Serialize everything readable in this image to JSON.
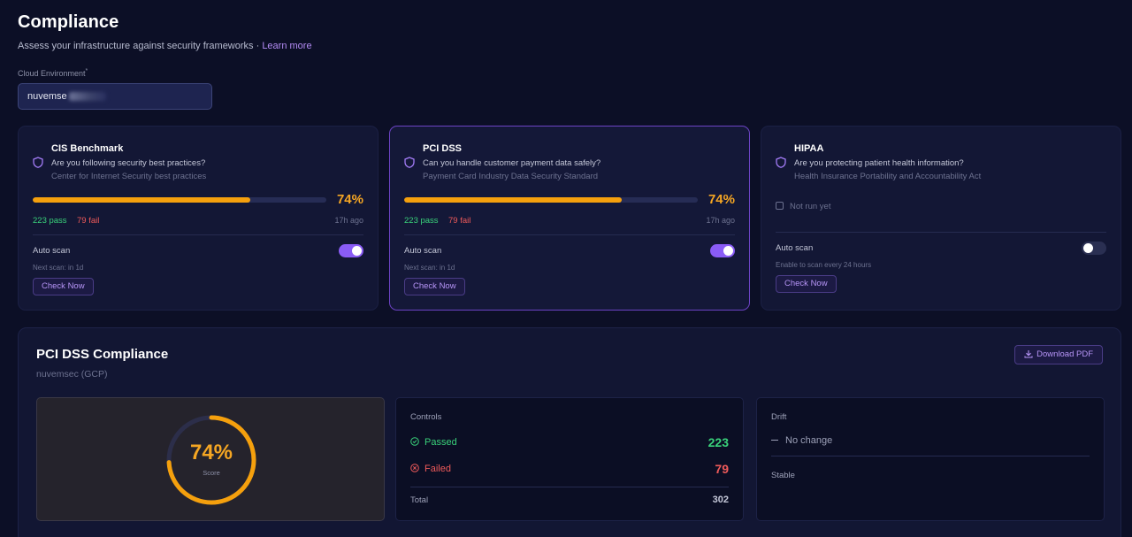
{
  "header": {
    "title": "Compliance",
    "subtitle": "Assess your infrastructure against security frameworks · ",
    "learn_more": "Learn more"
  },
  "environment": {
    "label": "Cloud Environment",
    "required_mark": "*",
    "value": "nuvemse"
  },
  "frameworks": [
    {
      "title": "CIS Benchmark",
      "question": "Are you following security best practices?",
      "description": "Center for Internet Security best practices",
      "percent": 74,
      "percent_label": "74%",
      "pass": "223 pass",
      "fail": "79 fail",
      "ago": "17h ago",
      "auto_scan_label": "Auto scan",
      "auto_scan_on": true,
      "next_scan": "Next scan: in 1d",
      "check_now": "Check Now"
    },
    {
      "title": "PCI DSS",
      "question": "Can you handle customer payment data safely?",
      "description": "Payment Card Industry Data Security Standard",
      "percent": 74,
      "percent_label": "74%",
      "pass": "223 pass",
      "fail": "79 fail",
      "ago": "17h ago",
      "auto_scan_label": "Auto scan",
      "auto_scan_on": true,
      "next_scan": "Next scan: in 1d",
      "check_now": "Check Now"
    },
    {
      "title": "HIPAA",
      "question": "Are you protecting patient health information?",
      "description": "Health Insurance Portability and Accountability Act",
      "not_run": "Not run yet",
      "auto_scan_label": "Auto scan",
      "auto_scan_on": false,
      "enable_hint": "Enable to scan every 24 hours",
      "check_now": "Check Now"
    }
  ],
  "detail": {
    "title": "PCI DSS Compliance",
    "subtitle": "nuvemsec (GCP)",
    "download": "Download PDF",
    "score": {
      "value": "74%",
      "percent": 74,
      "label": "Score"
    },
    "controls": {
      "label": "Controls",
      "passed_label": "Passed",
      "passed_value": "223",
      "failed_label": "Failed",
      "failed_value": "79",
      "total_label": "Total",
      "total_value": "302"
    },
    "drift": {
      "label": "Drift",
      "change": "No change",
      "status": "Stable"
    }
  },
  "colors": {
    "accent": "#8a5cf6",
    "warning": "#f5a623",
    "pass": "#39d17a",
    "fail": "#ef5a5a",
    "background": "#0c0f26"
  }
}
